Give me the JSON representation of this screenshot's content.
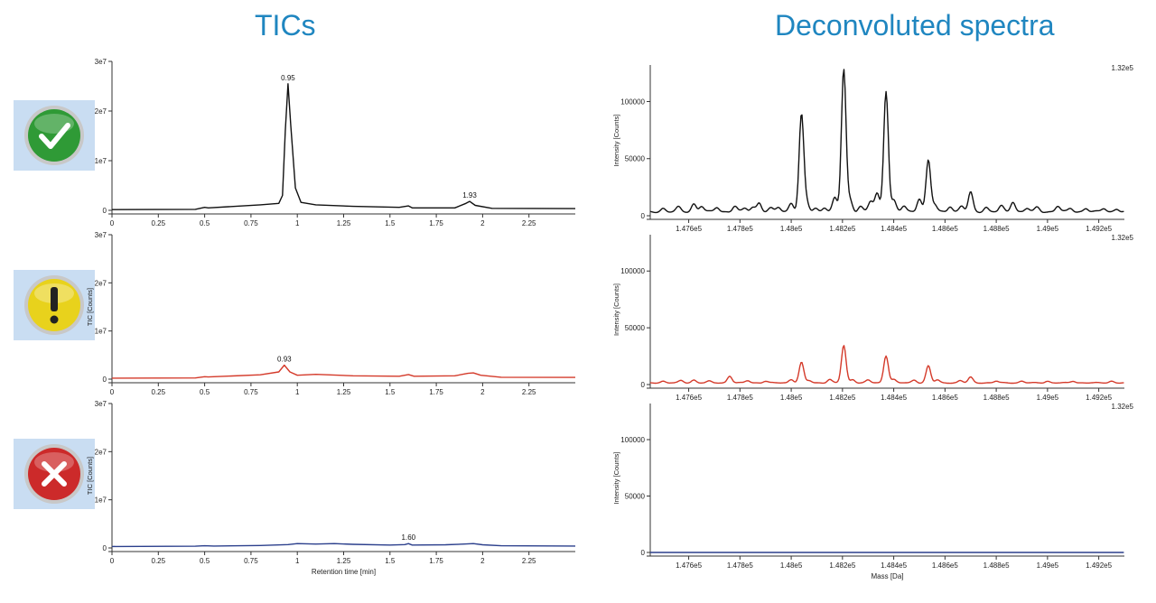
{
  "titles": {
    "left": "TICs",
    "right": "Deconvoluted spectra"
  },
  "status_icons": [
    "check-icon",
    "warning-icon",
    "error-icon"
  ],
  "colors": {
    "title": "#1f86c0",
    "pass": "#111111",
    "warn": "#d43a2a",
    "fail": "#2b3f8c"
  },
  "chart_data": [
    {
      "type": "line",
      "panel": "TIC",
      "status": "pass",
      "ylabel": "",
      "xlabel": "",
      "xlim": [
        0,
        2.5
      ],
      "ylim": [
        0,
        30000000
      ],
      "xticks": [
        0,
        0.25,
        0.5,
        0.75,
        1,
        1.25,
        1.5,
        1.75,
        2,
        2.25
      ],
      "xtick_labels": [
        "0",
        "0.25",
        "0.5",
        "0.75",
        "1",
        "1.25",
        "1.5",
        "1.75",
        "2",
        "2.25"
      ],
      "yticks": [
        0,
        10000000,
        20000000,
        30000000
      ],
      "ytick_labels": [
        "0",
        "1e7",
        "2e7",
        "3e7"
      ],
      "color": "#111111",
      "x": [
        0,
        0.45,
        0.5,
        0.52,
        0.8,
        0.9,
        0.92,
        0.935,
        0.95,
        0.965,
        0.99,
        1.02,
        1.1,
        1.3,
        1.55,
        1.6,
        1.62,
        1.85,
        1.91,
        1.93,
        1.96,
        2.05,
        2.5
      ],
      "y": [
        150000,
        200000,
        600000,
        500000,
        1100000,
        1400000,
        3000000,
        16000000,
        25500000,
        17000000,
        4500000,
        1600000,
        1100000,
        800000,
        600000,
        900000,
        500000,
        500000,
        1400000,
        1800000,
        1000000,
        400000,
        350000
      ],
      "annotations": [
        {
          "x": 0.95,
          "y": 25500000,
          "text": "0.95"
        },
        {
          "x": 1.93,
          "y": 1800000,
          "text": "1.93"
        }
      ]
    },
    {
      "type": "line",
      "panel": "TIC",
      "status": "warning",
      "ylabel": "TIC [Counts]",
      "xlabel": "",
      "xlim": [
        0,
        2.5
      ],
      "ylim": [
        0,
        30000000
      ],
      "xticks": [
        0,
        0.25,
        0.5,
        0.75,
        1,
        1.25,
        1.5,
        1.75,
        2,
        2.25
      ],
      "xtick_labels": [
        "0",
        "0.25",
        "0.5",
        "0.75",
        "1",
        "1.25",
        "1.5",
        "1.75",
        "2",
        "2.25"
      ],
      "yticks": [
        0,
        10000000,
        20000000,
        30000000
      ],
      "ytick_labels": [
        "0",
        "1e7",
        "2e7",
        "3e7"
      ],
      "color": "#d43a2a",
      "x": [
        0,
        0.45,
        0.5,
        0.52,
        0.8,
        0.9,
        0.93,
        0.96,
        1.0,
        1.1,
        1.3,
        1.55,
        1.6,
        1.63,
        1.85,
        1.92,
        1.95,
        1.99,
        2.1,
        2.5
      ],
      "y": [
        200000,
        250000,
        500000,
        450000,
        900000,
        1500000,
        2900000,
        1500000,
        800000,
        1000000,
        700000,
        600000,
        950000,
        600000,
        700000,
        1200000,
        1300000,
        800000,
        400000,
        350000
      ],
      "annotations": [
        {
          "x": 0.93,
          "y": 2900000,
          "text": "0.93"
        }
      ]
    },
    {
      "type": "line",
      "panel": "TIC",
      "status": "fail",
      "ylabel": "TIC [Counts]",
      "xlabel": "Retention time [min]",
      "xlim": [
        0,
        2.5
      ],
      "ylim": [
        0,
        30000000
      ],
      "xticks": [
        0,
        0.25,
        0.5,
        0.75,
        1,
        1.25,
        1.5,
        1.75,
        2,
        2.25
      ],
      "xtick_labels": [
        "0",
        "0.25",
        "0.5",
        "0.75",
        "1",
        "1.25",
        "1.5",
        "1.75",
        "2",
        "2.25"
      ],
      "yticks": [
        0,
        10000000,
        20000000,
        30000000
      ],
      "ytick_labels": [
        "0",
        "1e7",
        "2e7",
        "3e7"
      ],
      "color": "#2b3f8c",
      "x": [
        0,
        0.45,
        0.5,
        0.55,
        0.8,
        0.95,
        1.0,
        1.1,
        1.2,
        1.3,
        1.5,
        1.58,
        1.6,
        1.62,
        1.8,
        1.9,
        1.95,
        2.0,
        2.1,
        2.5
      ],
      "y": [
        300000,
        350000,
        450000,
        400000,
        500000,
        700000,
        900000,
        800000,
        900000,
        750000,
        600000,
        700000,
        900000,
        600000,
        650000,
        800000,
        900000,
        650000,
        450000,
        400000
      ],
      "annotations": [
        {
          "x": 1.6,
          "y": 900000,
          "text": "1.60"
        }
      ]
    },
    {
      "type": "line",
      "panel": "spectrum",
      "status": "pass",
      "ylabel": "Intensity [Counts]",
      "xlabel": "",
      "xlim": [
        147450,
        149300
      ],
      "ylim": [
        0,
        132000
      ],
      "xticks": [
        147600,
        147800,
        148000,
        148200,
        148400,
        148600,
        148800,
        149000,
        149200
      ],
      "xtick_labels": [
        "1.476e5",
        "1.478e5",
        "1.48e5",
        "1.482e5",
        "1.484e5",
        "1.486e5",
        "1.488e5",
        "1.49e5",
        "1.492e5"
      ],
      "yticks": [
        0,
        50000,
        100000
      ],
      "ytick_labels": [
        "0",
        "50000",
        "100000"
      ],
      "max_label": "1.32e5",
      "color": "#111111",
      "baseline": 3500,
      "peaks": [
        [
          147500,
          3000
        ],
        [
          147560,
          4000
        ],
        [
          147620,
          7000
        ],
        [
          147650,
          5000
        ],
        [
          147710,
          4000
        ],
        [
          147780,
          5000
        ],
        [
          147820,
          3000
        ],
        [
          147850,
          4000
        ],
        [
          147875,
          8000
        ],
        [
          147920,
          3000
        ],
        [
          147950,
          4000
        ],
        [
          148000,
          8000
        ],
        [
          148040,
          85000
        ],
        [
          148060,
          8000
        ],
        [
          148095,
          3000
        ],
        [
          148130,
          4000
        ],
        [
          148170,
          12000
        ],
        [
          148205,
          125000
        ],
        [
          148230,
          10000
        ],
        [
          148270,
          5000
        ],
        [
          148310,
          9000
        ],
        [
          148335,
          16000
        ],
        [
          148370,
          106000
        ],
        [
          148400,
          10000
        ],
        [
          148440,
          5000
        ],
        [
          148500,
          12000
        ],
        [
          148535,
          45000
        ],
        [
          148560,
          6000
        ],
        [
          148620,
          5000
        ],
        [
          148665,
          5000
        ],
        [
          148700,
          17000
        ],
        [
          148760,
          4000
        ],
        [
          148820,
          5000
        ],
        [
          148865,
          9000
        ],
        [
          148920,
          3000
        ],
        [
          148960,
          4000
        ],
        [
          149040,
          5000
        ],
        [
          149090,
          3000
        ],
        [
          149150,
          3000
        ],
        [
          149220,
          3000
        ],
        [
          149270,
          2500
        ]
      ]
    },
    {
      "type": "line",
      "panel": "spectrum",
      "status": "warning",
      "ylabel": "Intensity [Counts]",
      "xlabel": "",
      "xlim": [
        147450,
        149300
      ],
      "ylim": [
        0,
        132000
      ],
      "xticks": [
        147600,
        147800,
        148000,
        148200,
        148400,
        148600,
        148800,
        149000,
        149200
      ],
      "xtick_labels": [
        "1.476e5",
        "1.478e5",
        "1.48e5",
        "1.482e5",
        "1.484e5",
        "1.486e5",
        "1.488e5",
        "1.49e5",
        "1.492e5"
      ],
      "yticks": [
        0,
        50000,
        100000
      ],
      "ytick_labels": [
        "0",
        "50000",
        "100000"
      ],
      "max_label": "1.32e5",
      "color": "#d43a2a",
      "baseline": 1500,
      "peaks": [
        [
          147500,
          1500
        ],
        [
          147570,
          2000
        ],
        [
          147620,
          2500
        ],
        [
          147680,
          1500
        ],
        [
          147760,
          6000
        ],
        [
          147830,
          2000
        ],
        [
          147900,
          1500
        ],
        [
          148000,
          3000
        ],
        [
          148040,
          18000
        ],
        [
          148070,
          2000
        ],
        [
          148150,
          3000
        ],
        [
          148205,
          33000
        ],
        [
          148240,
          3000
        ],
        [
          148300,
          2500
        ],
        [
          148370,
          24000
        ],
        [
          148400,
          3000
        ],
        [
          148480,
          2500
        ],
        [
          148535,
          15000
        ],
        [
          148570,
          2500
        ],
        [
          148660,
          2000
        ],
        [
          148700,
          5000
        ],
        [
          148800,
          1500
        ],
        [
          148900,
          1500
        ],
        [
          149000,
          1500
        ],
        [
          149100,
          1500
        ],
        [
          149250,
          1500
        ]
      ]
    },
    {
      "type": "line",
      "panel": "spectrum",
      "status": "fail",
      "ylabel": "Intensity [Counts]",
      "xlabel": "Mass [Da]",
      "xlim": [
        147450,
        149300
      ],
      "ylim": [
        0,
        132000
      ],
      "xticks": [
        147600,
        147800,
        148000,
        148200,
        148400,
        148600,
        148800,
        149000,
        149200
      ],
      "xtick_labels": [
        "1.476e5",
        "1.478e5",
        "1.48e5",
        "1.482e5",
        "1.484e5",
        "1.486e5",
        "1.488e5",
        "1.49e5",
        "1.492e5"
      ],
      "yticks": [
        0,
        50000,
        100000
      ],
      "ytick_labels": [
        "0",
        "50000",
        "100000"
      ],
      "max_label": "1.32e5",
      "color": "#2b3f8c",
      "baseline": 0,
      "peaks": []
    }
  ]
}
